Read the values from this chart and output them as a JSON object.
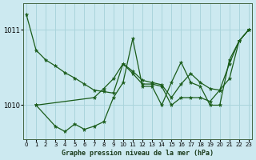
{
  "title": "Graphe pression niveau de la mer (hPa)",
  "background_color": "#cce9f0",
  "grid_color": "#aad4dc",
  "line_color": "#1a5c1a",
  "ylim": [
    1009.55,
    1011.35
  ],
  "yticks": [
    1010,
    1011
  ],
  "xlim": [
    -0.3,
    23.3
  ],
  "xticks": [
    0,
    1,
    2,
    3,
    4,
    5,
    6,
    7,
    8,
    9,
    10,
    11,
    12,
    13,
    14,
    15,
    16,
    17,
    18,
    19,
    20,
    21,
    22,
    23
  ],
  "s1_x": [
    0,
    1,
    2,
    3,
    4,
    5,
    6,
    7,
    8,
    9,
    10,
    11,
    12,
    13,
    14,
    15,
    16,
    17,
    18,
    19,
    20,
    21,
    22,
    23
  ],
  "s1_y": [
    1011.2,
    1010.73,
    1010.6,
    1010.52,
    1010.43,
    1010.36,
    1010.28,
    1010.2,
    1010.18,
    1010.16,
    1010.55,
    1010.42,
    1010.28,
    1010.28,
    1010.25,
    1010.0,
    1010.1,
    1010.1,
    1010.1,
    1010.05,
    1010.2,
    1010.35,
    1010.85,
    1011.0
  ],
  "s2_x": [
    1,
    3,
    4,
    5,
    6,
    7,
    8,
    9,
    10,
    11,
    12,
    13,
    14,
    15,
    16,
    17,
    18,
    19,
    20,
    21,
    22,
    23
  ],
  "s2_y": [
    1010.0,
    1009.72,
    1009.65,
    1009.75,
    1009.68,
    1009.72,
    1009.78,
    1010.1,
    1010.3,
    1010.88,
    1010.25,
    1010.25,
    1010.0,
    1010.3,
    1010.57,
    1010.3,
    1010.25,
    1010.0,
    1010.0,
    1010.6,
    1010.85,
    1011.0
  ],
  "s3_x": [
    1,
    7,
    8,
    9,
    10,
    11,
    12,
    13,
    14,
    15,
    16,
    17,
    18,
    19,
    20,
    21,
    22,
    23
  ],
  "s3_y": [
    1010.0,
    1010.1,
    1010.22,
    1010.35,
    1010.55,
    1010.45,
    1010.33,
    1010.3,
    1010.27,
    1010.1,
    1010.28,
    1010.42,
    1010.3,
    1010.22,
    1010.2,
    1010.55,
    1010.85,
    1011.0
  ],
  "marker_size": 3.5,
  "lw": 0.9,
  "xlabel_size": 6,
  "tick_size": 5
}
